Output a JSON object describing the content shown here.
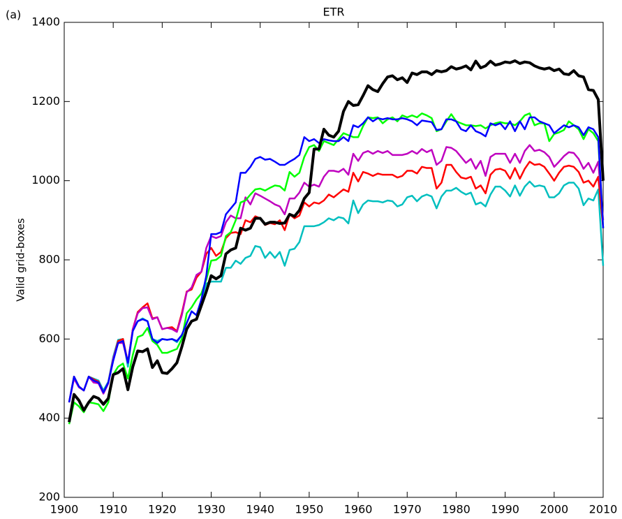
{
  "chart_data": {
    "type": "line",
    "title": "ETR",
    "panel_label": "(a)",
    "y_label": "Valid grid-boxes",
    "x": [
      1901,
      1902,
      1903,
      1904,
      1905,
      1906,
      1907,
      1908,
      1909,
      1910,
      1911,
      1912,
      1913,
      1914,
      1915,
      1916,
      1917,
      1918,
      1919,
      1920,
      1921,
      1922,
      1923,
      1924,
      1925,
      1926,
      1927,
      1928,
      1929,
      1930,
      1931,
      1932,
      1933,
      1934,
      1935,
      1936,
      1937,
      1938,
      1939,
      1940,
      1941,
      1942,
      1943,
      1944,
      1945,
      1946,
      1947,
      1948,
      1949,
      1950,
      1951,
      1952,
      1953,
      1954,
      1955,
      1956,
      1957,
      1958,
      1959,
      1960,
      1961,
      1962,
      1963,
      1964,
      1965,
      1966,
      1967,
      1968,
      1969,
      1970,
      1971,
      1972,
      1973,
      1974,
      1975,
      1976,
      1977,
      1978,
      1979,
      1980,
      1981,
      1982,
      1983,
      1984,
      1985,
      1986,
      1987,
      1988,
      1989,
      1990,
      1991,
      1992,
      1993,
      1994,
      1995,
      1996,
      1997,
      1998,
      1999,
      2000,
      2001,
      2002,
      2003,
      2004,
      2005,
      2006,
      2007,
      2008,
      2009,
      2010
    ],
    "series": [
      {
        "color": "#00bfbf",
        "linewidth": 2.5,
        "values": [
          440,
          505,
          480,
          470,
          505,
          500,
          495,
          470,
          492,
          555,
          598,
          600,
          530,
          625,
          645,
          652,
          645,
          600,
          595,
          600,
          598,
          600,
          592,
          610,
          640,
          670,
          660,
          700,
          740,
          745,
          745,
          745,
          780,
          780,
          798,
          790,
          805,
          810,
          835,
          832,
          805,
          820,
          805,
          820,
          785,
          825,
          828,
          845,
          885,
          885,
          885,
          888,
          895,
          905,
          900,
          908,
          905,
          892,
          950,
          918,
          940,
          950,
          948,
          948,
          945,
          950,
          948,
          935,
          940,
          958,
          962,
          948,
          960,
          965,
          960,
          930,
          960,
          975,
          975,
          982,
          972,
          965,
          970,
          940,
          945,
          935,
          965,
          985,
          985,
          975,
          960,
          988,
          962,
          985,
          998,
          985,
          988,
          985,
          958,
          958,
          968,
          988,
          995,
          995,
          980,
          938,
          955,
          950,
          978,
          785
        ]
      },
      {
        "color": "#ff0000",
        "linewidth": 2.5,
        "values": [
          440,
          505,
          480,
          470,
          505,
          498,
          492,
          465,
          490,
          550,
          595,
          600,
          540,
          625,
          668,
          680,
          690,
          652,
          655,
          625,
          628,
          630,
          620,
          665,
          720,
          725,
          755,
          770,
          815,
          830,
          810,
          820,
          855,
          868,
          870,
          865,
          900,
          895,
          910,
          905,
          888,
          893,
          890,
          900,
          875,
          915,
          905,
          912,
          945,
          935,
          945,
          942,
          950,
          965,
          958,
          968,
          978,
          972,
          1020,
          998,
          1022,
          1018,
          1012,
          1018,
          1015,
          1015,
          1015,
          1008,
          1012,
          1025,
          1025,
          1018,
          1035,
          1032,
          1032,
          980,
          995,
          1040,
          1040,
          1022,
          1008,
          1005,
          1010,
          980,
          988,
          968,
          1015,
          1028,
          1030,
          1025,
          1005,
          1032,
          1005,
          1030,
          1048,
          1040,
          1042,
          1035,
          1018,
          1000,
          1020,
          1035,
          1038,
          1035,
          1022,
          995,
          1000,
          985,
          1010,
          880
        ]
      },
      {
        "color": "#bf00bf",
        "linewidth": 2.5,
        "values": [
          440,
          500,
          478,
          470,
          505,
          490,
          488,
          462,
          488,
          550,
          590,
          590,
          540,
          625,
          665,
          678,
          680,
          650,
          655,
          625,
          628,
          625,
          618,
          660,
          718,
          730,
          762,
          770,
          830,
          860,
          855,
          860,
          895,
          912,
          905,
          905,
          958,
          940,
          968,
          962,
          955,
          948,
          940,
          935,
          915,
          955,
          955,
          970,
          995,
          985,
          990,
          985,
          1010,
          1025,
          1025,
          1022,
          1030,
          1015,
          1068,
          1050,
          1070,
          1075,
          1068,
          1075,
          1070,
          1075,
          1065,
          1065,
          1065,
          1068,
          1075,
          1068,
          1080,
          1072,
          1078,
          1040,
          1050,
          1085,
          1083,
          1075,
          1060,
          1045,
          1055,
          1030,
          1050,
          1012,
          1060,
          1068,
          1068,
          1068,
          1045,
          1068,
          1045,
          1075,
          1090,
          1075,
          1078,
          1072,
          1060,
          1035,
          1048,
          1062,
          1072,
          1070,
          1055,
          1030,
          1045,
          1020,
          1048,
          900
        ]
      },
      {
        "color": "#00ff00",
        "linewidth": 2.5,
        "values": [
          385,
          440,
          430,
          415,
          440,
          438,
          435,
          418,
          440,
          510,
          530,
          538,
          500,
          560,
          605,
          610,
          628,
          595,
          585,
          565,
          565,
          570,
          575,
          600,
          665,
          680,
          700,
          715,
          750,
          798,
          800,
          810,
          860,
          870,
          900,
          945,
          950,
          965,
          978,
          980,
          975,
          982,
          988,
          986,
          975,
          1022,
          1010,
          1020,
          1060,
          1085,
          1090,
          1075,
          1100,
          1095,
          1090,
          1105,
          1120,
          1115,
          1110,
          1110,
          1138,
          1160,
          1158,
          1160,
          1145,
          1155,
          1160,
          1150,
          1165,
          1160,
          1165,
          1160,
          1170,
          1165,
          1158,
          1125,
          1130,
          1150,
          1168,
          1150,
          1145,
          1140,
          1140,
          1138,
          1140,
          1132,
          1140,
          1145,
          1148,
          1145,
          1145,
          1140,
          1150,
          1165,
          1170,
          1140,
          1145,
          1145,
          1100,
          1118,
          1122,
          1128,
          1150,
          1140,
          1130,
          1105,
          1130,
          1120,
          1100,
          880
        ]
      },
      {
        "color": "#0000ff",
        "linewidth": 2.5,
        "values": [
          440,
          505,
          480,
          470,
          505,
          495,
          490,
          465,
          490,
          545,
          590,
          595,
          540,
          620,
          645,
          650,
          645,
          600,
          590,
          600,
          598,
          600,
          595,
          610,
          640,
          670,
          660,
          700,
          760,
          865,
          865,
          870,
          915,
          930,
          945,
          1020,
          1020,
          1035,
          1055,
          1060,
          1053,
          1055,
          1048,
          1040,
          1040,
          1048,
          1055,
          1065,
          1110,
          1100,
          1105,
          1095,
          1105,
          1102,
          1100,
          1100,
          1110,
          1100,
          1140,
          1135,
          1145,
          1160,
          1150,
          1158,
          1155,
          1158,
          1155,
          1155,
          1158,
          1155,
          1150,
          1140,
          1152,
          1150,
          1148,
          1128,
          1130,
          1155,
          1155,
          1150,
          1130,
          1125,
          1140,
          1125,
          1120,
          1112,
          1145,
          1140,
          1145,
          1130,
          1150,
          1125,
          1150,
          1130,
          1160,
          1160,
          1150,
          1145,
          1140,
          1120,
          1130,
          1140,
          1135,
          1140,
          1135,
          1115,
          1135,
          1130,
          1110,
          880
        ]
      },
      {
        "color": "#000000",
        "linewidth": 4,
        "values": [
          390,
          460,
          445,
          420,
          440,
          455,
          450,
          435,
          450,
          510,
          515,
          525,
          472,
          530,
          570,
          568,
          575,
          528,
          545,
          515,
          513,
          525,
          540,
          580,
          625,
          645,
          650,
          685,
          720,
          760,
          752,
          760,
          815,
          825,
          830,
          880,
          875,
          880,
          905,
          905,
          890,
          895,
          895,
          892,
          893,
          915,
          910,
          925,
          955,
          970,
          1080,
          1080,
          1130,
          1115,
          1110,
          1125,
          1175,
          1200,
          1190,
          1192,
          1215,
          1240,
          1230,
          1225,
          1245,
          1262,
          1265,
          1255,
          1260,
          1248,
          1272,
          1268,
          1275,
          1275,
          1268,
          1278,
          1275,
          1278,
          1288,
          1282,
          1285,
          1290,
          1280,
          1302,
          1285,
          1290,
          1302,
          1292,
          1295,
          1300,
          1298,
          1303,
          1296,
          1300,
          1298,
          1290,
          1285,
          1282,
          1285,
          1278,
          1282,
          1270,
          1268,
          1278,
          1265,
          1262,
          1230,
          1228,
          1205,
          1000
        ]
      }
    ],
    "xlim": [
      1900,
      2010
    ],
    "xticks": [
      1900,
      1910,
      1920,
      1930,
      1940,
      1950,
      1960,
      1970,
      1980,
      1990,
      2000,
      2010
    ],
    "ylim": [
      200,
      1400
    ],
    "yticks": [
      200,
      400,
      600,
      800,
      1000,
      1200,
      1400
    ],
    "grid": false
  }
}
